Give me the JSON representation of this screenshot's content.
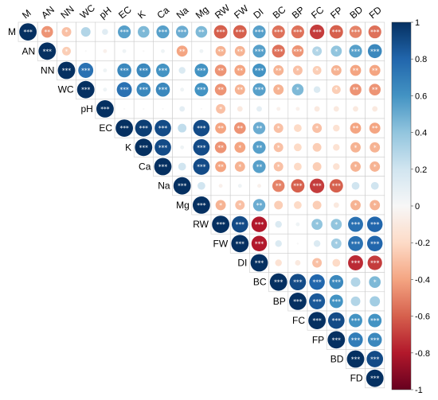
{
  "chart_data": {
    "type": "heatmap",
    "variables": [
      "M",
      "AN",
      "NN",
      "WC",
      "pH",
      "EC",
      "K",
      "Ca",
      "Na",
      "Mg",
      "RW",
      "FW",
      "DI",
      "BC",
      "BP",
      "FC",
      "FP",
      "BD",
      "FD"
    ],
    "correlations": [
      [
        1.0,
        -0.45,
        -0.3,
        0.3,
        0.12,
        0.55,
        0.45,
        0.55,
        0.5,
        0.45,
        -0.6,
        -0.6,
        0.55,
        -0.55,
        -0.55,
        -0.7,
        -0.6,
        -0.5,
        -0.55
      ],
      [
        null,
        1.0,
        -0.25,
        0.0,
        -0.05,
        0.05,
        0.0,
        0.05,
        -0.4,
        0.05,
        -0.35,
        -0.35,
        0.55,
        -0.55,
        -0.45,
        0.3,
        0.4,
        0.55,
        0.65
      ],
      [
        null,
        null,
        1.0,
        0.75,
        0.05,
        0.65,
        0.65,
        0.6,
        0.15,
        0.6,
        -0.45,
        -0.4,
        0.6,
        -0.35,
        -0.3,
        -0.25,
        -0.35,
        -0.4,
        -0.4
      ],
      [
        null,
        null,
        null,
        1.0,
        0.05,
        0.75,
        0.65,
        0.65,
        0.05,
        0.6,
        -0.45,
        -0.35,
        0.55,
        -0.35,
        0.45,
        0.15,
        -0.25,
        -0.45,
        -0.45
      ],
      [
        null,
        null,
        null,
        null,
        1.0,
        0.0,
        0.0,
        0.0,
        0.1,
        0.0,
        -0.3,
        -0.1,
        0.1,
        -0.05,
        -0.05,
        -0.1,
        -0.1,
        -0.1,
        -0.1
      ],
      [
        null,
        null,
        null,
        null,
        null,
        1.0,
        0.95,
        0.9,
        0.25,
        0.9,
        -0.4,
        -0.45,
        0.5,
        -0.3,
        -0.2,
        -0.3,
        -0.15,
        -0.4,
        -0.4
      ],
      [
        null,
        null,
        null,
        null,
        null,
        null,
        1.0,
        0.9,
        0.05,
        0.9,
        -0.45,
        -0.4,
        0.55,
        -0.3,
        -0.2,
        -0.25,
        -0.15,
        -0.35,
        -0.35
      ],
      [
        null,
        null,
        null,
        null,
        null,
        null,
        null,
        1.0,
        0.2,
        0.9,
        -0.4,
        -0.35,
        0.55,
        -0.3,
        -0.2,
        -0.25,
        -0.15,
        -0.35,
        -0.35
      ],
      [
        null,
        null,
        null,
        null,
        null,
        null,
        null,
        null,
        1.0,
        0.2,
        -0.05,
        0.05,
        -0.05,
        -0.5,
        -0.6,
        -0.7,
        -0.6,
        0.2,
        0.2
      ],
      [
        null,
        null,
        null,
        null,
        null,
        null,
        null,
        null,
        null,
        1.0,
        -0.35,
        -0.3,
        0.5,
        -0.25,
        -0.2,
        -0.25,
        -0.1,
        -0.35,
        -0.35
      ],
      [
        null,
        null,
        null,
        null,
        null,
        null,
        null,
        null,
        null,
        null,
        1.0,
        0.9,
        -0.8,
        0.15,
        0.05,
        0.4,
        0.4,
        0.75,
        0.8
      ],
      [
        null,
        null,
        null,
        null,
        null,
        null,
        null,
        null,
        null,
        null,
        null,
        1.0,
        -0.8,
        0.15,
        0.0,
        0.15,
        0.35,
        0.75,
        0.8
      ],
      [
        null,
        null,
        null,
        null,
        null,
        null,
        null,
        null,
        null,
        null,
        null,
        null,
        1.0,
        -0.15,
        -0.1,
        -0.3,
        -0.2,
        -0.75,
        -0.7
      ],
      [
        null,
        null,
        null,
        null,
        null,
        null,
        null,
        null,
        null,
        null,
        null,
        null,
        null,
        1.0,
        0.9,
        0.8,
        0.65,
        0.3,
        0.45
      ],
      [
        null,
        null,
        null,
        null,
        null,
        null,
        null,
        null,
        null,
        null,
        null,
        null,
        null,
        null,
        1.0,
        0.85,
        0.6,
        0.3,
        0.35
      ],
      [
        null,
        null,
        null,
        null,
        null,
        null,
        null,
        null,
        null,
        null,
        null,
        null,
        null,
        null,
        null,
        1.0,
        0.9,
        0.6,
        0.6
      ],
      [
        null,
        null,
        null,
        null,
        null,
        null,
        null,
        null,
        null,
        null,
        null,
        null,
        null,
        null,
        null,
        null,
        1.0,
        0.7,
        0.65
      ],
      [
        null,
        null,
        null,
        null,
        null,
        null,
        null,
        null,
        null,
        null,
        null,
        null,
        null,
        null,
        null,
        null,
        null,
        1.0,
        0.9
      ],
      [
        null,
        null,
        null,
        null,
        null,
        null,
        null,
        null,
        null,
        null,
        null,
        null,
        null,
        null,
        null,
        null,
        null,
        null,
        1.0
      ]
    ],
    "significance": [
      [
        "***",
        "**",
        "*",
        "",
        "",
        "***",
        "*",
        "***",
        "***",
        "**",
        "***",
        "***",
        "***",
        "***",
        "***",
        "***",
        "***",
        "***",
        "***"
      ],
      [
        null,
        "***",
        "*",
        "",
        "",
        "",
        "",
        "",
        "**",
        "",
        "**",
        "**",
        "***",
        "***",
        "***",
        "*",
        "*",
        "***",
        "***"
      ],
      [
        null,
        null,
        "***",
        "***",
        "",
        "***",
        "***",
        "***",
        "",
        "***",
        "**",
        "**",
        "***",
        "**",
        "*",
        "*",
        "**",
        "**",
        "**"
      ],
      [
        null,
        null,
        null,
        "***",
        "",
        "***",
        "***",
        "***",
        "",
        "***",
        "**",
        "**",
        "***",
        "*",
        "*",
        "",
        "*",
        "**",
        "**"
      ],
      [
        null,
        null,
        null,
        null,
        "***",
        "",
        "",
        "",
        "",
        "",
        "*",
        "",
        "",
        "",
        "",
        "",
        "",
        "",
        ""
      ],
      [
        null,
        null,
        null,
        null,
        null,
        "***",
        "***",
        "***",
        "",
        "***",
        "**",
        "**",
        "**",
        "*",
        "",
        "*",
        "",
        "**",
        "**"
      ],
      [
        null,
        null,
        null,
        null,
        null,
        null,
        "***",
        "***",
        "",
        "***",
        "**",
        "*",
        "**",
        "*",
        "",
        "",
        "",
        "*",
        "*"
      ],
      [
        null,
        null,
        null,
        null,
        null,
        null,
        null,
        "***",
        "",
        "***",
        "**",
        "*",
        "**",
        "*",
        "",
        "",
        "",
        "*",
        "*"
      ],
      [
        null,
        null,
        null,
        null,
        null,
        null,
        null,
        null,
        "***",
        "",
        "",
        "",
        "",
        "**",
        "***",
        "***",
        "***",
        "",
        ""
      ],
      [
        null,
        null,
        null,
        null,
        null,
        null,
        null,
        null,
        null,
        "***",
        "*",
        "*",
        "**",
        "",
        "",
        "",
        "",
        "*",
        "*"
      ],
      [
        null,
        null,
        null,
        null,
        null,
        null,
        null,
        null,
        null,
        null,
        "***",
        "***",
        "***",
        "",
        "",
        "*",
        "*",
        "***",
        "***"
      ],
      [
        null,
        null,
        null,
        null,
        null,
        null,
        null,
        null,
        null,
        null,
        null,
        "***",
        "***",
        "",
        "",
        "",
        "*",
        "***",
        "***"
      ],
      [
        null,
        null,
        null,
        null,
        null,
        null,
        null,
        null,
        null,
        null,
        null,
        null,
        "***",
        "",
        "",
        "*",
        "",
        "***",
        "***"
      ],
      [
        null,
        null,
        null,
        null,
        null,
        null,
        null,
        null,
        null,
        null,
        null,
        null,
        null,
        "***",
        "***",
        "***",
        "***",
        "",
        "*"
      ],
      [
        null,
        null,
        null,
        null,
        null,
        null,
        null,
        null,
        null,
        null,
        null,
        null,
        null,
        null,
        "***",
        "***",
        "***",
        "",
        ""
      ],
      [
        null,
        null,
        null,
        null,
        null,
        null,
        null,
        null,
        null,
        null,
        null,
        null,
        null,
        null,
        null,
        "***",
        "***",
        "***",
        "***"
      ],
      [
        null,
        null,
        null,
        null,
        null,
        null,
        null,
        null,
        null,
        null,
        null,
        null,
        null,
        null,
        null,
        null,
        "***",
        "***",
        "***"
      ],
      [
        null,
        null,
        null,
        null,
        null,
        null,
        null,
        null,
        null,
        null,
        null,
        null,
        null,
        null,
        null,
        null,
        null,
        "***",
        "***"
      ],
      [
        null,
        null,
        null,
        null,
        null,
        null,
        null,
        null,
        null,
        null,
        null,
        null,
        null,
        null,
        null,
        null,
        null,
        null,
        "***"
      ]
    ],
    "colorbar": {
      "range": [
        -1,
        1
      ],
      "ticks": [
        "1",
        "0.8",
        "0.6",
        "0.4",
        "0.2",
        "0",
        "-0.2",
        "-0.4",
        "-0.6",
        "-0.8",
        "-1"
      ]
    },
    "colors": {
      "positive": "#053061",
      "neutral": "#f7f7f7",
      "negative": "#67001f",
      "grid": "#cccccc",
      "star": "#ffffff"
    },
    "legend_position": "right",
    "title": "",
    "xlabel": "",
    "ylabel": ""
  }
}
